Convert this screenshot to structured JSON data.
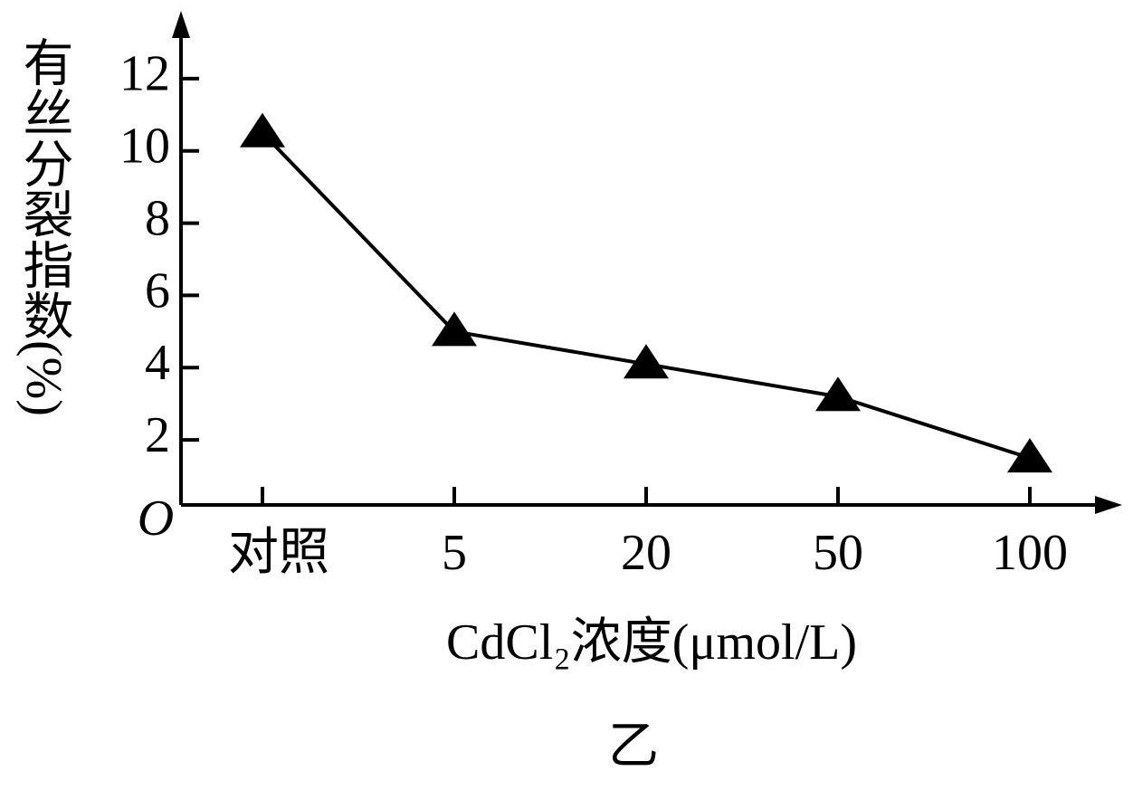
{
  "chart_data": {
    "type": "line",
    "y_label": "有丝分裂指数(%)",
    "x_label": "CdCl₂浓度(μmol/L)",
    "caption": "乙",
    "origin_label": "O",
    "categories": [
      "对照",
      "5",
      "20",
      "50",
      "100"
    ],
    "values": [
      10.5,
      5,
      4.1,
      3.2,
      1.5
    ],
    "color": "#000000",
    "ylim": [
      0.2,
      13.8
    ],
    "yticks": [
      2,
      4,
      6,
      8,
      10,
      12
    ],
    "grid": false
  }
}
